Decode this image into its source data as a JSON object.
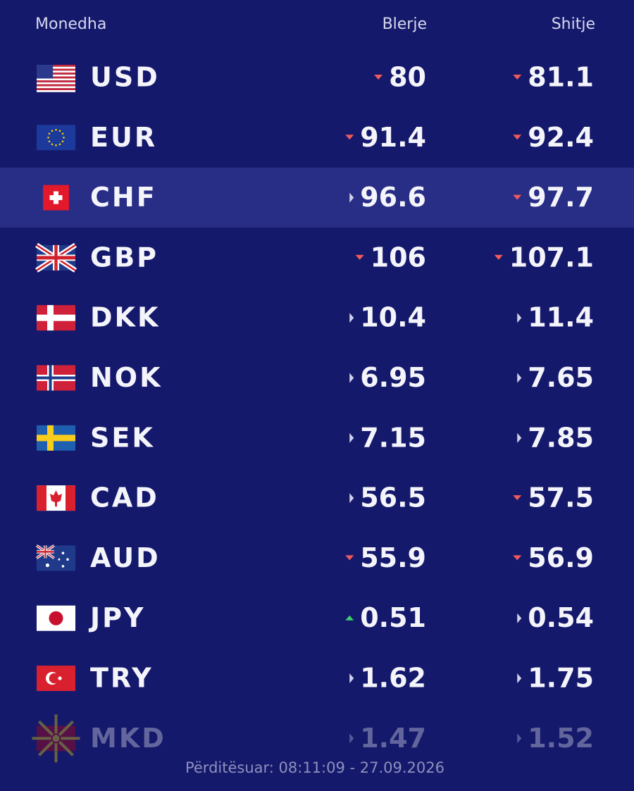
{
  "header": {
    "currency": "Monedha",
    "buy": "Blerje",
    "sell": "Shitje"
  },
  "rows": [
    {
      "code": "USD",
      "buy": "80",
      "buy_trend": "down",
      "sell": "81.1",
      "sell_trend": "down"
    },
    {
      "code": "EUR",
      "buy": "91.4",
      "buy_trend": "down",
      "sell": "92.4",
      "sell_trend": "down"
    },
    {
      "code": "CHF",
      "buy": "96.6",
      "buy_trend": "flat",
      "sell": "97.7",
      "sell_trend": "down"
    },
    {
      "code": "GBP",
      "buy": "106",
      "buy_trend": "down",
      "sell": "107.1",
      "sell_trend": "down"
    },
    {
      "code": "DKK",
      "buy": "10.4",
      "buy_trend": "flat",
      "sell": "11.4",
      "sell_trend": "flat"
    },
    {
      "code": "NOK",
      "buy": "6.95",
      "buy_trend": "flat",
      "sell": "7.65",
      "sell_trend": "flat"
    },
    {
      "code": "SEK",
      "buy": "7.15",
      "buy_trend": "flat",
      "sell": "7.85",
      "sell_trend": "flat"
    },
    {
      "code": "CAD",
      "buy": "56.5",
      "buy_trend": "flat",
      "sell": "57.5",
      "sell_trend": "down"
    },
    {
      "code": "AUD",
      "buy": "55.9",
      "buy_trend": "down",
      "sell": "56.9",
      "sell_trend": "down"
    },
    {
      "code": "JPY",
      "buy": "0.51",
      "buy_trend": "up",
      "sell": "0.54",
      "sell_trend": "flat"
    },
    {
      "code": "TRY",
      "buy": "1.62",
      "buy_trend": "flat",
      "sell": "1.75",
      "sell_trend": "flat"
    },
    {
      "code": "MKD",
      "buy": "1.47",
      "buy_trend": "flat",
      "sell": "1.52",
      "sell_trend": "flat"
    }
  ],
  "highlighted_row": 2,
  "footer": "Përditësuar: 08:11:09 - 27.09.2026"
}
